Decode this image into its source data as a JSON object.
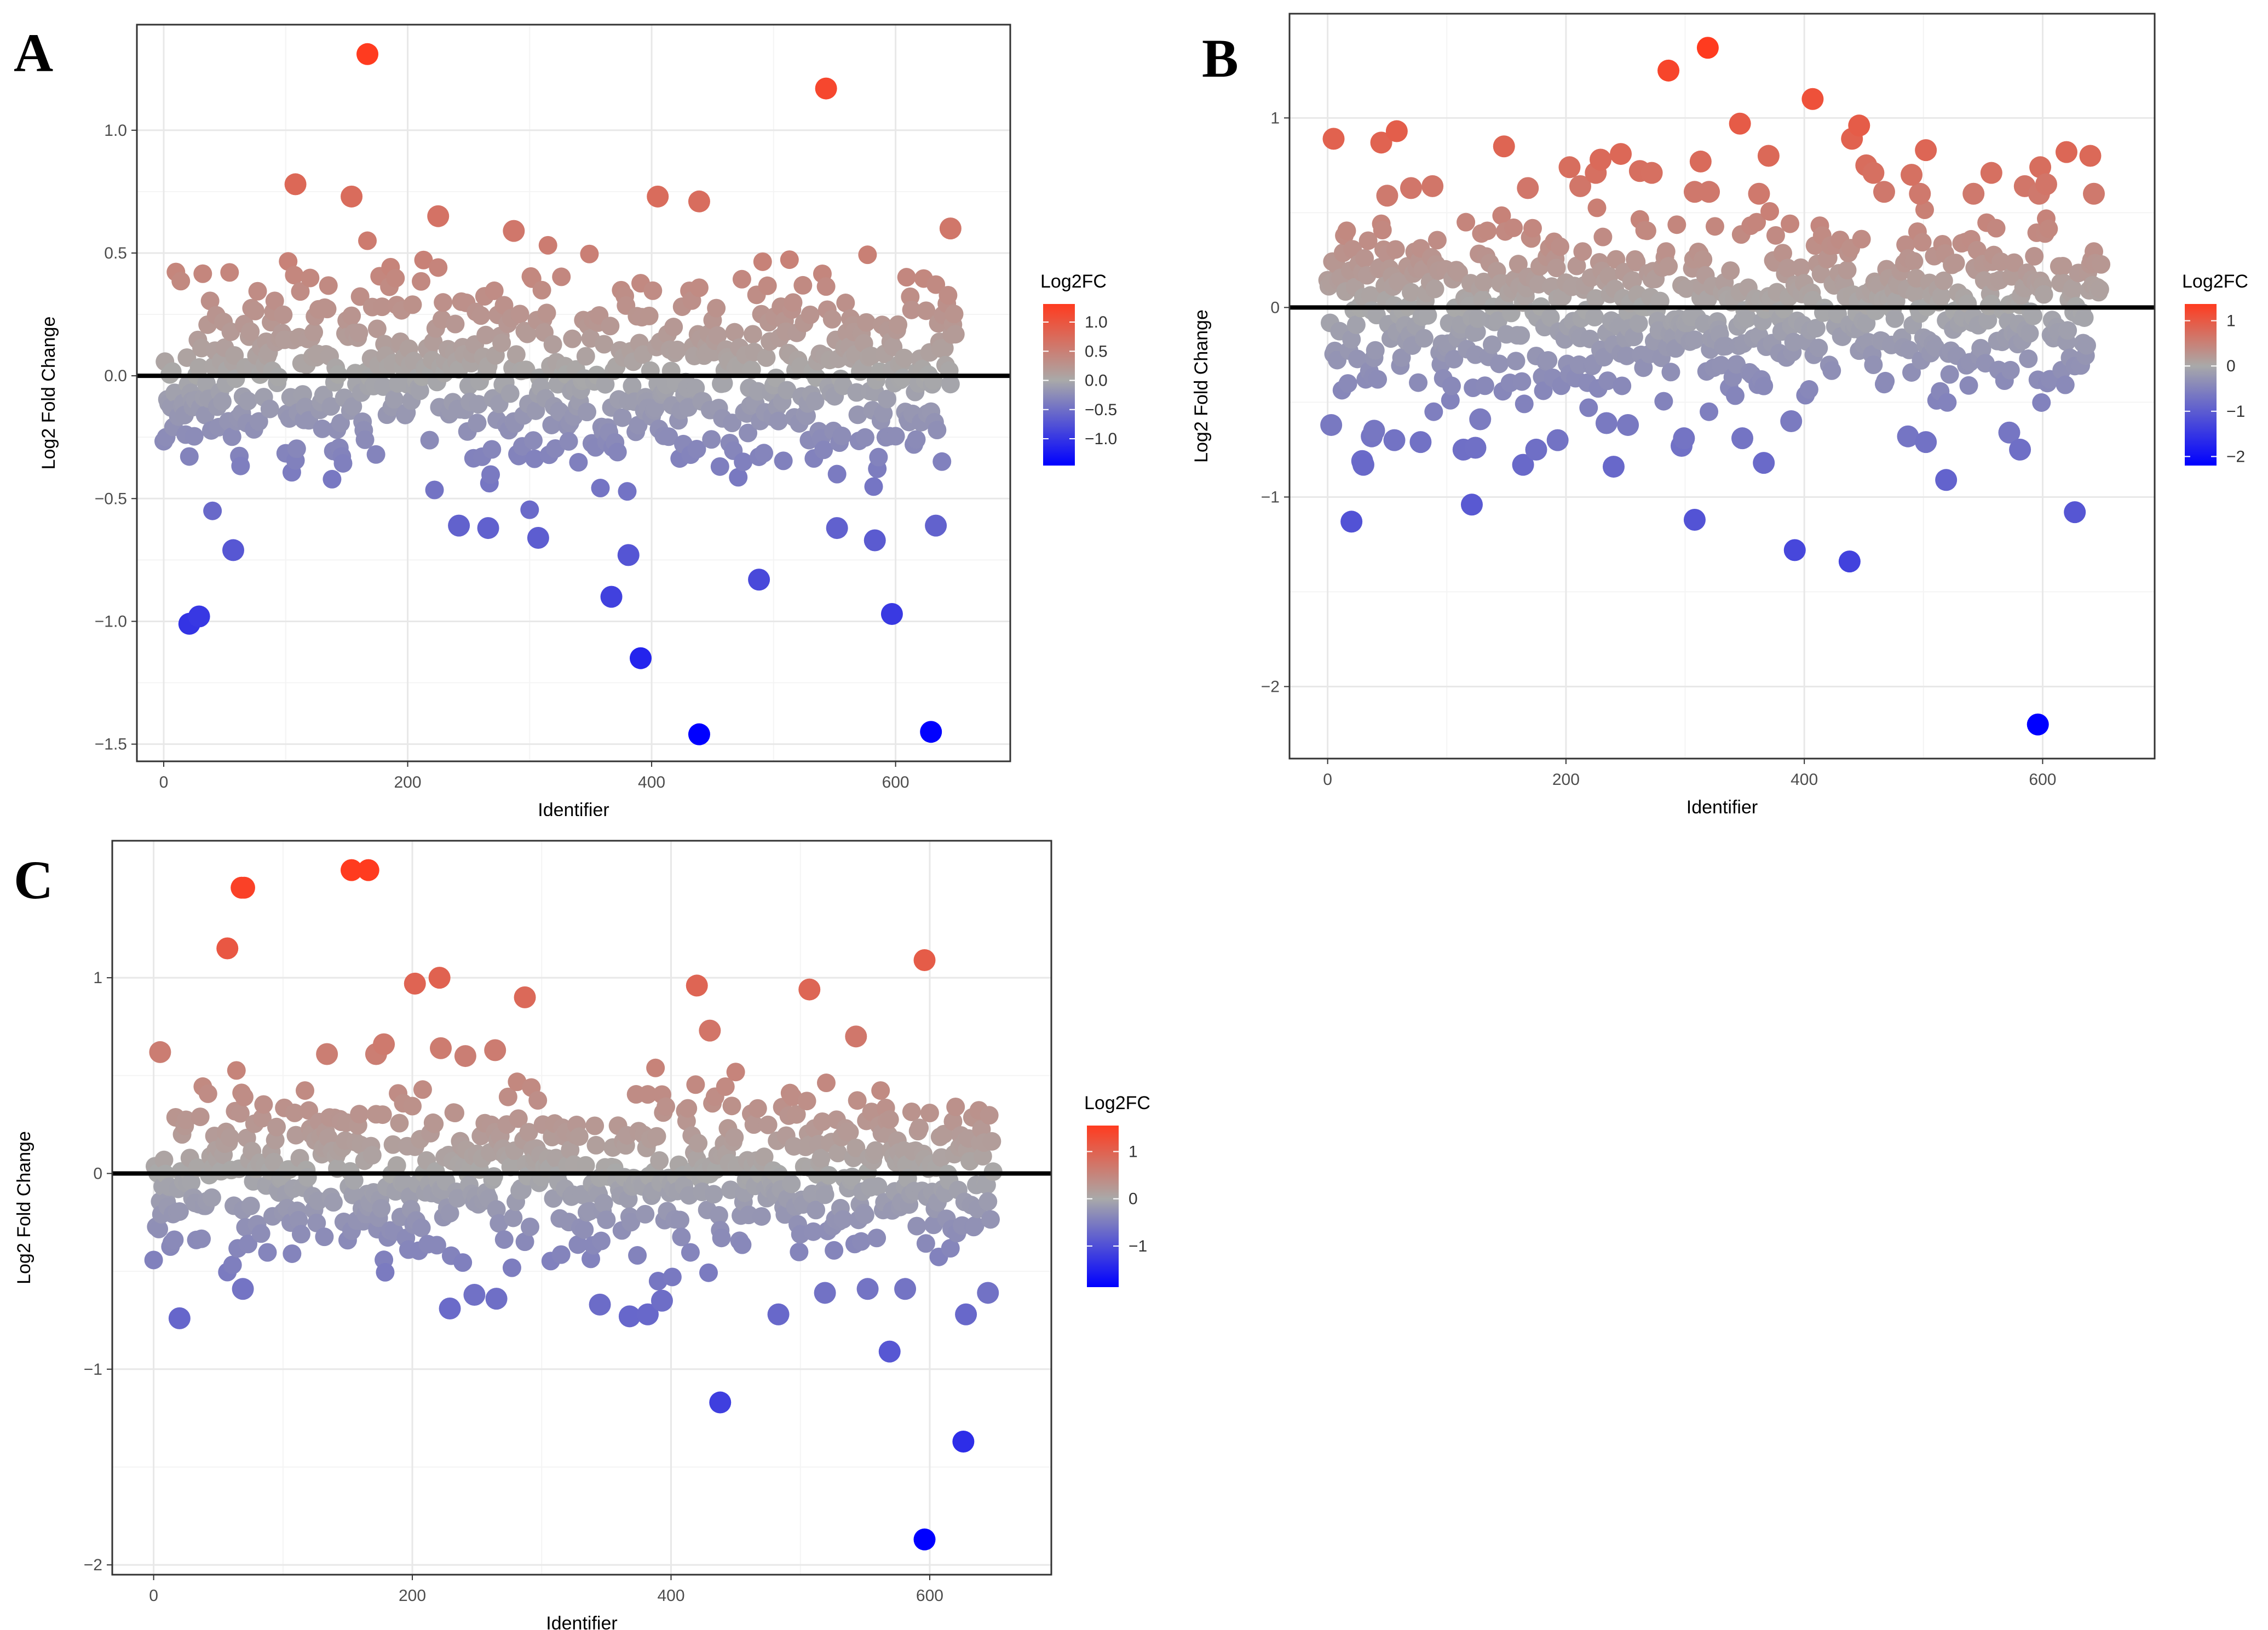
{
  "colors": {
    "low": "#0000ff",
    "mid": "#a9a9a9",
    "high": "#ff3b1f",
    "zero_line": "#000000",
    "grid_major": "#e8e8e8",
    "grid_minor": "#f4f4f4",
    "panel_border": "#333333"
  },
  "chart_data": [
    {
      "panel": "A",
      "type": "scatter",
      "xlabel": "Identifier",
      "ylabel": "Log2 Fold Change",
      "xlim": [
        -22,
        694
      ],
      "ylim": [
        -1.57,
        1.43
      ],
      "xticks": [
        0,
        200,
        400,
        600
      ],
      "xtick_labels": [
        "0",
        "200",
        "400",
        "600"
      ],
      "yticks": [
        -1.5,
        -1.0,
        -0.5,
        0.0,
        0.5,
        1.0
      ],
      "ytick_labels": [
        "−1.5",
        "−1.0",
        "−0.5",
        "0.0",
        "0.5",
        "1.0"
      ],
      "reference_line_y": 0,
      "legend": {
        "title": "Log2FC",
        "min": -1.46,
        "max": 1.31,
        "breaks": [
          1.0,
          0.5,
          0.0,
          -0.5,
          -1.0
        ],
        "labels": [
          "1.0",
          "0.5",
          "0.0",
          "−0.5",
          "−1.0"
        ]
      },
      "n_points": 650,
      "seed": 11,
      "bulk_range": [
        -0.55,
        0.55
      ],
      "highlighted_points": [
        {
          "x": 167,
          "y": 1.31
        },
        {
          "x": 543,
          "y": 1.17
        },
        {
          "x": 108,
          "y": 0.78
        },
        {
          "x": 154,
          "y": 0.73
        },
        {
          "x": 405,
          "y": 0.73
        },
        {
          "x": 439,
          "y": 0.71
        },
        {
          "x": 225,
          "y": 0.65
        },
        {
          "x": 645,
          "y": 0.6
        },
        {
          "x": 287,
          "y": 0.59
        },
        {
          "x": 21,
          "y": -1.01
        },
        {
          "x": 29,
          "y": -0.98
        },
        {
          "x": 57,
          "y": -0.71
        },
        {
          "x": 242,
          "y": -0.61
        },
        {
          "x": 266,
          "y": -0.62
        },
        {
          "x": 307,
          "y": -0.66
        },
        {
          "x": 367,
          "y": -0.9
        },
        {
          "x": 381,
          "y": -0.73
        },
        {
          "x": 391,
          "y": -1.15
        },
        {
          "x": 439,
          "y": -1.46
        },
        {
          "x": 488,
          "y": -0.83
        },
        {
          "x": 552,
          "y": -0.62
        },
        {
          "x": 583,
          "y": -0.67
        },
        {
          "x": 597,
          "y": -0.97
        },
        {
          "x": 629,
          "y": -1.45
        },
        {
          "x": 633,
          "y": -0.61
        }
      ]
    },
    {
      "panel": "B",
      "type": "scatter",
      "xlabel": "Identifier",
      "ylabel": "Log2 Fold Change",
      "xlim": [
        -32,
        694
      ],
      "ylim": [
        -2.38,
        1.55
      ],
      "xticks": [
        0,
        200,
        400,
        600
      ],
      "xtick_labels": [
        "0",
        "200",
        "400",
        "600"
      ],
      "yticks": [
        -2,
        -1,
        0,
        1
      ],
      "ytick_labels": [
        "−2",
        "−1",
        "0",
        "1"
      ],
      "reference_line_y": 0,
      "legend": {
        "title": "Log2FC",
        "min": -2.2,
        "max": 1.37,
        "breaks": [
          1,
          0,
          -1,
          -2
        ],
        "labels": [
          "1",
          "0",
          "−1",
          "−2"
        ]
      },
      "n_points": 650,
      "seed": 29,
      "bulk_range": [
        -0.55,
        0.58
      ],
      "highlighted_points": [
        {
          "x": 5,
          "y": 0.89
        },
        {
          "x": 45,
          "y": 0.87
        },
        {
          "x": 58,
          "y": 0.93
        },
        {
          "x": 50,
          "y": 0.59
        },
        {
          "x": 70,
          "y": 0.63
        },
        {
          "x": 88,
          "y": 0.64
        },
        {
          "x": 148,
          "y": 0.85
        },
        {
          "x": 168,
          "y": 0.63
        },
        {
          "x": 203,
          "y": 0.74
        },
        {
          "x": 212,
          "y": 0.64
        },
        {
          "x": 225,
          "y": 0.71
        },
        {
          "x": 229,
          "y": 0.78
        },
        {
          "x": 246,
          "y": 0.81
        },
        {
          "x": 262,
          "y": 0.72
        },
        {
          "x": 272,
          "y": 0.71
        },
        {
          "x": 286,
          "y": 1.25
        },
        {
          "x": 319,
          "y": 1.37
        },
        {
          "x": 308,
          "y": 0.61
        },
        {
          "x": 313,
          "y": 0.77
        },
        {
          "x": 320,
          "y": 0.61
        },
        {
          "x": 346,
          "y": 0.97
        },
        {
          "x": 362,
          "y": 0.6
        },
        {
          "x": 370,
          "y": 0.8
        },
        {
          "x": 407,
          "y": 1.1
        },
        {
          "x": 440,
          "y": 0.89
        },
        {
          "x": 446,
          "y": 0.96
        },
        {
          "x": 452,
          "y": 0.75
        },
        {
          "x": 458,
          "y": 0.71
        },
        {
          "x": 467,
          "y": 0.61
        },
        {
          "x": 497,
          "y": 0.6
        },
        {
          "x": 490,
          "y": 0.7
        },
        {
          "x": 502,
          "y": 0.83
        },
        {
          "x": 542,
          "y": 0.6
        },
        {
          "x": 557,
          "y": 0.71
        },
        {
          "x": 585,
          "y": 0.64
        },
        {
          "x": 597,
          "y": 0.6
        },
        {
          "x": 598,
          "y": 0.74
        },
        {
          "x": 603,
          "y": 0.65
        },
        {
          "x": 620,
          "y": 0.82
        },
        {
          "x": 640,
          "y": 0.8
        },
        {
          "x": 643,
          "y": 0.6
        },
        {
          "x": 3,
          "y": -0.62
        },
        {
          "x": 20,
          "y": -1.13
        },
        {
          "x": 29,
          "y": -0.81
        },
        {
          "x": 30,
          "y": -0.83
        },
        {
          "x": 37,
          "y": -0.68
        },
        {
          "x": 39,
          "y": -0.65
        },
        {
          "x": 56,
          "y": -0.7
        },
        {
          "x": 78,
          "y": -0.71
        },
        {
          "x": 114,
          "y": -0.75
        },
        {
          "x": 121,
          "y": -1.04
        },
        {
          "x": 124,
          "y": -0.74
        },
        {
          "x": 128,
          "y": -0.59
        },
        {
          "x": 164,
          "y": -0.83
        },
        {
          "x": 175,
          "y": -0.75
        },
        {
          "x": 193,
          "y": -0.7
        },
        {
          "x": 234,
          "y": -0.61
        },
        {
          "x": 240,
          "y": -0.84
        },
        {
          "x": 252,
          "y": -0.62
        },
        {
          "x": 297,
          "y": -0.73
        },
        {
          "x": 299,
          "y": -0.69
        },
        {
          "x": 308,
          "y": -1.12
        },
        {
          "x": 348,
          "y": -0.69
        },
        {
          "x": 366,
          "y": -0.82
        },
        {
          "x": 389,
          "y": -0.6
        },
        {
          "x": 392,
          "y": -1.28
        },
        {
          "x": 438,
          "y": -1.34
        },
        {
          "x": 487,
          "y": -0.68
        },
        {
          "x": 502,
          "y": -0.71
        },
        {
          "x": 519,
          "y": -0.91
        },
        {
          "x": 572,
          "y": -0.66
        },
        {
          "x": 581,
          "y": -0.75
        },
        {
          "x": 596,
          "y": -2.2
        },
        {
          "x": 627,
          "y": -1.08
        }
      ]
    },
    {
      "panel": "C",
      "type": "scatter",
      "xlabel": "Identifier",
      "ylabel": "Log2 Fold Change",
      "xlim": [
        -32,
        694
      ],
      "ylim": [
        -2.05,
        1.7
      ],
      "xticks": [
        0,
        200,
        400,
        600
      ],
      "xtick_labels": [
        "0",
        "200",
        "400",
        "600"
      ],
      "yticks": [
        -2,
        -1,
        0,
        1
      ],
      "ytick_labels": [
        "−2",
        "−1",
        "0",
        "1"
      ],
      "reference_line_y": 0,
      "legend": {
        "title": "Log2FC",
        "min": -1.87,
        "max": 1.55,
        "breaks": [
          1,
          0,
          -1
        ],
        "labels": [
          "1",
          "0",
          "−1"
        ]
      },
      "n_points": 650,
      "seed": 53,
      "bulk_range": [
        -0.55,
        0.55
      ],
      "highlighted_points": [
        {
          "x": 5,
          "y": 0.62
        },
        {
          "x": 57,
          "y": 1.15
        },
        {
          "x": 68,
          "y": 1.46
        },
        {
          "x": 70,
          "y": 1.46
        },
        {
          "x": 134,
          "y": 0.61
        },
        {
          "x": 153,
          "y": 1.55
        },
        {
          "x": 166,
          "y": 1.55
        },
        {
          "x": 172,
          "y": 0.61
        },
        {
          "x": 178,
          "y": 0.66
        },
        {
          "x": 202,
          "y": 0.97
        },
        {
          "x": 221,
          "y": 1.0
        },
        {
          "x": 222,
          "y": 0.64
        },
        {
          "x": 241,
          "y": 0.6
        },
        {
          "x": 264,
          "y": 0.63
        },
        {
          "x": 287,
          "y": 0.9
        },
        {
          "x": 420,
          "y": 0.96
        },
        {
          "x": 430,
          "y": 0.73
        },
        {
          "x": 507,
          "y": 0.94
        },
        {
          "x": 543,
          "y": 0.7
        },
        {
          "x": 596,
          "y": 1.09
        },
        {
          "x": 20,
          "y": -0.74
        },
        {
          "x": 69,
          "y": -0.59
        },
        {
          "x": 229,
          "y": -0.69
        },
        {
          "x": 248,
          "y": -0.62
        },
        {
          "x": 265,
          "y": -0.64
        },
        {
          "x": 345,
          "y": -0.67
        },
        {
          "x": 368,
          "y": -0.73
        },
        {
          "x": 382,
          "y": -0.72
        },
        {
          "x": 393,
          "y": -0.65
        },
        {
          "x": 438,
          "y": -1.17
        },
        {
          "x": 483,
          "y": -0.72
        },
        {
          "x": 519,
          "y": -0.61
        },
        {
          "x": 552,
          "y": -0.59
        },
        {
          "x": 569,
          "y": -0.91
        },
        {
          "x": 581,
          "y": -0.59
        },
        {
          "x": 596,
          "y": -1.87
        },
        {
          "x": 626,
          "y": -1.37
        },
        {
          "x": 628,
          "y": -0.72
        },
        {
          "x": 645,
          "y": -0.61
        }
      ]
    }
  ],
  "panels": [
    {
      "letter": "A"
    },
    {
      "letter": "B"
    },
    {
      "letter": "C"
    }
  ]
}
